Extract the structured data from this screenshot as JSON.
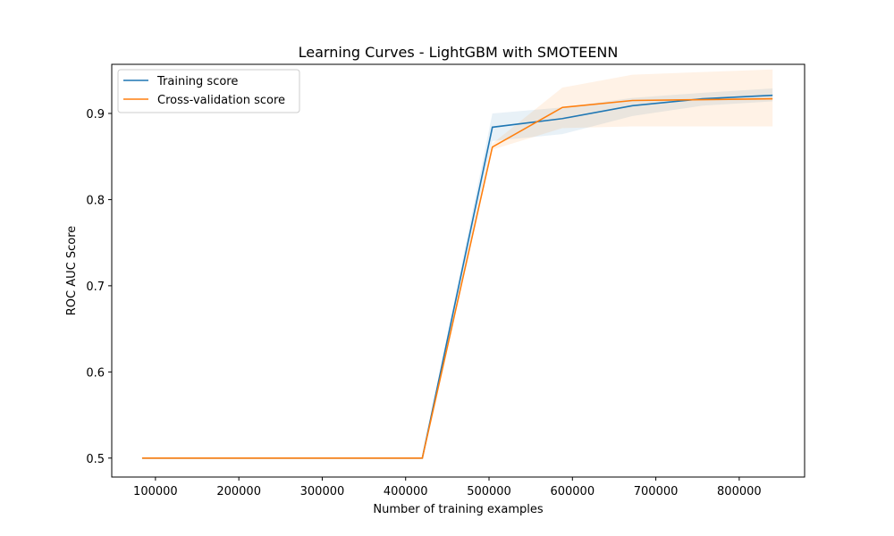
{
  "chart_data": {
    "type": "line",
    "title": "Learning Curves - LightGBM with SMOTEENN",
    "xlabel": "Number of training examples",
    "ylabel": "ROC AUC Score",
    "xlim": [
      47600,
      878400
    ],
    "ylim": [
      0.478,
      0.957
    ],
    "xticks": [
      100000,
      200000,
      300000,
      400000,
      500000,
      600000,
      700000,
      800000
    ],
    "xtick_labels": [
      "100000",
      "200000",
      "300000",
      "400000",
      "500000",
      "600000",
      "700000",
      "800000"
    ],
    "yticks": [
      0.5,
      0.6,
      0.7,
      0.8,
      0.9
    ],
    "ytick_labels": [
      "0.5",
      "0.6",
      "0.7",
      "0.8",
      "0.9"
    ],
    "grid": false,
    "legend_position": "top-left",
    "x": [
      84000,
      168000,
      252000,
      336000,
      420000,
      504000,
      588000,
      672000,
      756000,
      840000
    ],
    "series": [
      {
        "name": "Training score",
        "color": "#1f77b4",
        "values": [
          0.5,
          0.5,
          0.5,
          0.5,
          0.5,
          0.884,
          0.894,
          0.909,
          0.917,
          0.921
        ],
        "band_lower": [
          0.5,
          0.5,
          0.5,
          0.5,
          0.5,
          0.868,
          0.876,
          0.897,
          0.909,
          0.914
        ],
        "band_upper": [
          0.5,
          0.5,
          0.5,
          0.5,
          0.5,
          0.9,
          0.907,
          0.918,
          0.924,
          0.929
        ]
      },
      {
        "name": "Cross-validation score",
        "color": "#ff7f0e",
        "values": [
          0.5,
          0.5,
          0.5,
          0.5,
          0.5,
          0.861,
          0.907,
          0.915,
          0.916,
          0.917
        ],
        "band_lower": [
          0.5,
          0.5,
          0.5,
          0.5,
          0.5,
          0.858,
          0.883,
          0.885,
          0.885,
          0.885
        ],
        "band_upper": [
          0.5,
          0.5,
          0.5,
          0.5,
          0.5,
          0.865,
          0.93,
          0.945,
          0.948,
          0.951
        ]
      }
    ]
  }
}
